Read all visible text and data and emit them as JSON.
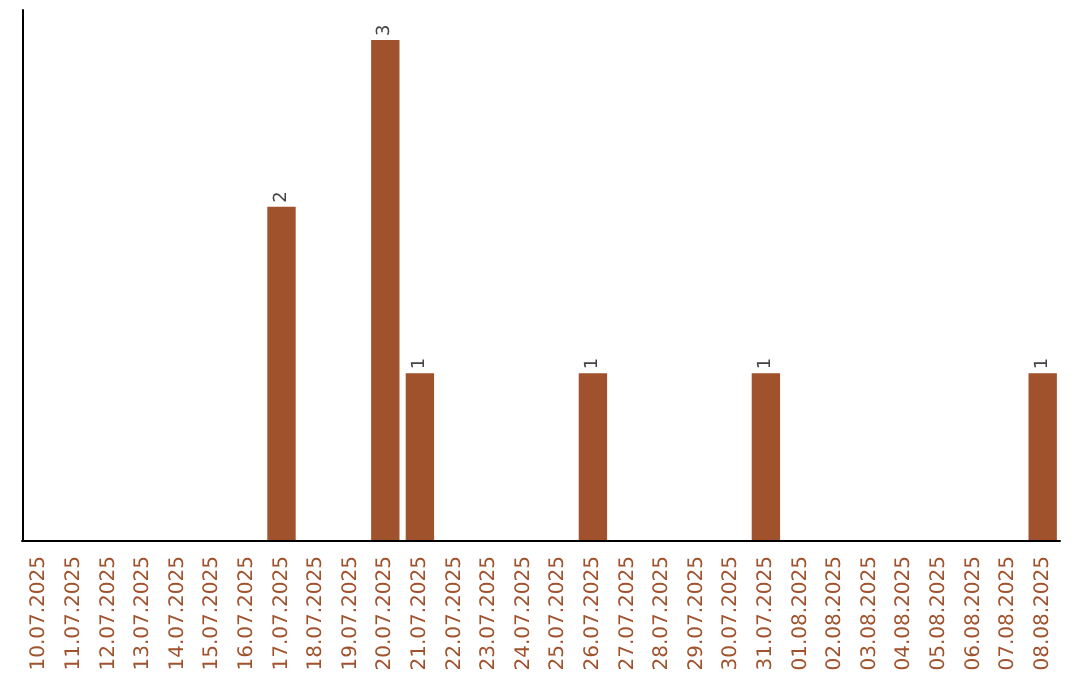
{
  "chart_data": {
    "type": "bar",
    "categories": [
      "10.07.2025",
      "11.07.2025",
      "12.07.2025",
      "13.07.2025",
      "14.07.2025",
      "15.07.2025",
      "16.07.2025",
      "17.07.2025",
      "18.07.2025",
      "19.07.2025",
      "20.07.2025",
      "21.07.2025",
      "22.07.2025",
      "23.07.2025",
      "24.07.2025",
      "25.07.2025",
      "26.07.2025",
      "27.07.2025",
      "28.07.2025",
      "29.07.2025",
      "30.07.2025",
      "31.07.2025",
      "01.08.2025",
      "02.08.2025",
      "03.08.2025",
      "04.08.2025",
      "05.08.2025",
      "06.08.2025",
      "07.08.2025",
      "08.08.2025"
    ],
    "values": [
      0,
      0,
      0,
      0,
      0,
      0,
      0,
      2,
      0,
      0,
      3,
      1,
      0,
      0,
      0,
      0,
      1,
      0,
      0,
      0,
      0,
      1,
      0,
      0,
      0,
      0,
      0,
      0,
      0,
      1
    ],
    "value_labels": [
      null,
      null,
      null,
      null,
      null,
      null,
      null,
      "2",
      null,
      null,
      "3",
      "1",
      null,
      null,
      null,
      null,
      "1",
      null,
      null,
      null,
      null,
      "1",
      null,
      null,
      null,
      null,
      null,
      null,
      null,
      "1"
    ],
    "color": "#a0522d",
    "grid": false,
    "tick_labels": "x"
  }
}
